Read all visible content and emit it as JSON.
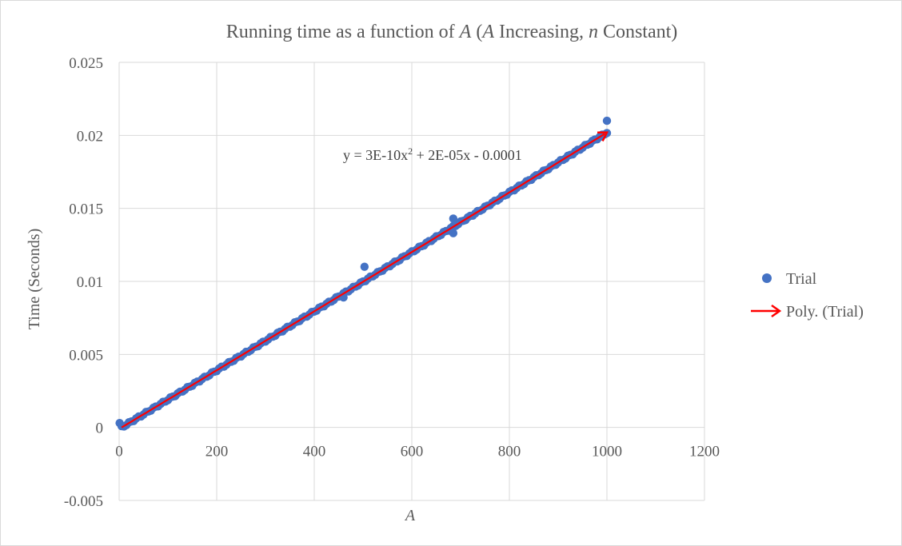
{
  "chart_data": {
    "type": "scatter",
    "title_parts": [
      {
        "text": "Running time as a function of ",
        "italic": false
      },
      {
        "text": "A",
        "italic": true
      },
      {
        "text": " (",
        "italic": false
      },
      {
        "text": "A",
        "italic": true
      },
      {
        "text": " Increasing, ",
        "italic": false
      },
      {
        "text": "n",
        "italic": true
      },
      {
        "text": " Constant)",
        "italic": false
      }
    ],
    "xlabel": "A",
    "ylabel": "Time (Seconds)",
    "xlim": [
      0,
      1200
    ],
    "ylim": [
      -0.005,
      0.025
    ],
    "x_ticks": [
      0,
      200,
      400,
      600,
      800,
      1000,
      1200
    ],
    "y_ticks": [
      -0.005,
      0,
      0.005,
      0.01,
      0.015,
      0.02,
      0.025
    ],
    "y_tick_labels": [
      "-0.005",
      "0",
      "0.005",
      "0.01",
      "0.015",
      "0.02",
      "0.025"
    ],
    "grid": true,
    "legend_position": "right",
    "series": [
      {
        "name": "Trial",
        "kind": "scatter",
        "color": "#4472C4",
        "x_range": [
          1,
          1000
        ],
        "note_points": "dense trial points along y = 3E-10x^2 + 2E-05x - 0.0001 from x=1 to x=1000, plus outliers",
        "outliers": [
          {
            "x": 1,
            "y": 0.0003
          },
          {
            "x": 460,
            "y": 0.0089
          },
          {
            "x": 503,
            "y": 0.011
          },
          {
            "x": 685,
            "y": 0.0143
          },
          {
            "x": 685,
            "y": 0.0133
          },
          {
            "x": 1000,
            "y": 0.021
          }
        ]
      },
      {
        "name": "Poly. (Trial)",
        "kind": "trendline",
        "color": "#FF0000",
        "coefficients": {
          "a": 3e-10,
          "b": 2e-05,
          "c": -0.0001
        },
        "x_range": [
          0,
          1000
        ]
      }
    ],
    "trend_equation": {
      "prefix": "y = 3E-10x",
      "sup": "2",
      "suffix": " + 2E-05x - 0.0001"
    }
  }
}
